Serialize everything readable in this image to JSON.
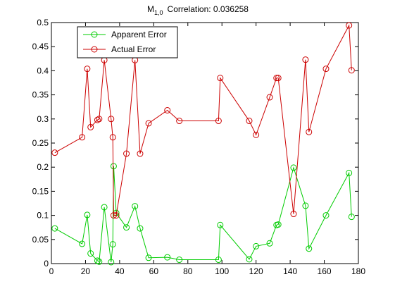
{
  "chart_data": {
    "type": "line",
    "title": {
      "base": "M",
      "subscript": "1,0",
      "text": "Correlation: 0.036258"
    },
    "xlim": [
      0,
      180
    ],
    "ylim": [
      0,
      0.5
    ],
    "x_ticks": [
      0,
      20,
      40,
      60,
      80,
      100,
      120,
      140,
      160,
      180
    ],
    "y_ticks": [
      0,
      0.05,
      0.1,
      0.15,
      0.2,
      0.25,
      0.3,
      0.35,
      0.4,
      0.45,
      0.5
    ],
    "x_tick_labels": [
      "0",
      "20",
      "40",
      "60",
      "80",
      "100",
      "120",
      "140",
      "160",
      "180"
    ],
    "y_tick_labels": [
      "0",
      "0.05",
      "0.1",
      "0.15",
      "0.2",
      "0.25",
      "0.3",
      "0.35",
      "0.4",
      "0.45",
      "0.5"
    ],
    "grid": false,
    "legend_position": "top-left",
    "x": [
      2,
      18,
      21,
      23,
      27,
      28,
      31,
      35,
      36,
      36.5,
      38,
      44,
      49,
      52,
      57,
      68,
      75,
      98,
      99,
      116,
      120,
      128,
      132,
      133,
      142,
      149,
      151,
      161,
      174.5,
      176
    ],
    "series": [
      {
        "name": "Apparent Error",
        "color": "#00cc00",
        "marker": "circle",
        "values": [
          0.073,
          0.041,
          0.101,
          0.021,
          0.006,
          0.004,
          0.117,
          0.003,
          0.04,
          0.202,
          0.105,
          0.075,
          0.119,
          0.073,
          0.012,
          0.013,
          0.008,
          0.008,
          0.08,
          0.009,
          0.036,
          0.042,
          0.08,
          0.081,
          0.199,
          0.12,
          0.031,
          0.1,
          0.188,
          0.097
        ]
      },
      {
        "name": "Actual Error",
        "color": "#cc0000",
        "marker": "circle",
        "values": [
          0.23,
          0.262,
          0.404,
          0.283,
          0.298,
          0.3,
          0.422,
          0.3,
          0.262,
          0.1,
          0.1,
          0.228,
          0.422,
          0.228,
          0.291,
          0.318,
          0.296,
          0.296,
          0.385,
          0.296,
          0.267,
          0.345,
          0.385,
          0.385,
          0.103,
          0.423,
          0.273,
          0.404,
          0.494,
          0.401
        ]
      }
    ]
  }
}
